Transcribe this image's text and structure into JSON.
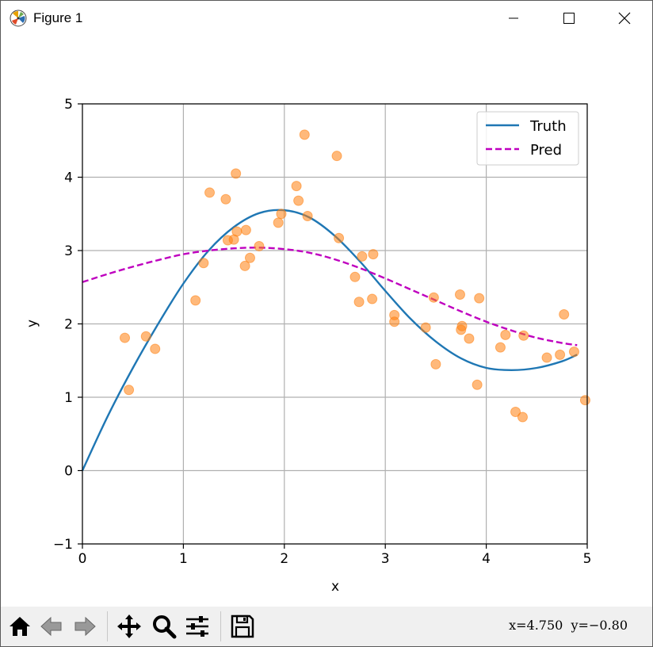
{
  "window": {
    "title": "Figure 1",
    "controls": {
      "minimize": "minimize",
      "maximize": "maximize",
      "close": "close"
    }
  },
  "chart_data": {
    "type": "scatter",
    "xlabel": "x",
    "ylabel": "y",
    "xlim": [
      0,
      5
    ],
    "ylim": [
      -1,
      5
    ],
    "xticks": [
      "0",
      "1",
      "2",
      "3",
      "4",
      "5"
    ],
    "yticks": [
      "−1",
      "0",
      "1",
      "2",
      "3",
      "4",
      "5"
    ],
    "grid": true,
    "legend_position": "top-right",
    "series": [
      {
        "name": "Truth",
        "kind": "line",
        "style": "solid",
        "color": "#1f77b4",
        "x": [
          0,
          0.25,
          0.5,
          0.75,
          1.0,
          1.25,
          1.5,
          1.75,
          2.0,
          2.25,
          2.5,
          2.75,
          3.0,
          3.25,
          3.5,
          3.75,
          4.0,
          4.25,
          4.5,
          4.75,
          4.9
        ],
        "y": [
          0,
          0.74,
          1.4,
          2.0,
          2.55,
          3.0,
          3.32,
          3.51,
          3.55,
          3.45,
          3.2,
          2.85,
          2.45,
          2.07,
          1.76,
          1.53,
          1.4,
          1.37,
          1.4,
          1.49,
          1.58
        ]
      },
      {
        "name": "Pred",
        "kind": "line",
        "style": "dashed",
        "color": "#bf00bf",
        "x": [
          0,
          0.25,
          0.5,
          0.75,
          1.0,
          1.25,
          1.5,
          1.75,
          2.0,
          2.25,
          2.5,
          2.75,
          3.0,
          3.25,
          3.5,
          3.75,
          4.0,
          4.25,
          4.5,
          4.75,
          4.9
        ],
        "y": [
          2.57,
          2.68,
          2.78,
          2.87,
          2.95,
          3.0,
          3.03,
          3.04,
          3.02,
          2.97,
          2.88,
          2.76,
          2.62,
          2.47,
          2.32,
          2.17,
          2.03,
          1.91,
          1.81,
          1.74,
          1.71
        ]
      },
      {
        "name": "",
        "kind": "scatter",
        "color": "#ff7f0e",
        "x": [
          0.42,
          0.46,
          0.63,
          0.72,
          1.12,
          1.2,
          1.26,
          1.42,
          1.44,
          1.5,
          1.52,
          1.53,
          1.61,
          1.62,
          1.66,
          1.75,
          1.94,
          1.97,
          2.12,
          2.14,
          2.2,
          2.23,
          2.52,
          2.54,
          2.7,
          2.74,
          2.77,
          2.87,
          2.88,
          3.09,
          3.09,
          3.4,
          3.48,
          3.5,
          3.74,
          3.75,
          3.76,
          3.83,
          3.91,
          3.93,
          4.14,
          4.19,
          4.29,
          4.36,
          4.37,
          4.6,
          4.73,
          4.77,
          4.87,
          4.98
        ],
        "y": [
          1.81,
          1.1,
          1.83,
          1.66,
          2.32,
          2.83,
          3.79,
          3.7,
          3.14,
          3.15,
          4.05,
          3.26,
          2.79,
          3.28,
          2.9,
          3.06,
          3.38,
          3.5,
          3.88,
          3.68,
          4.58,
          3.47,
          4.29,
          3.17,
          2.64,
          2.3,
          2.92,
          2.34,
          2.95,
          2.03,
          2.12,
          1.95,
          2.36,
          1.45,
          2.4,
          1.92,
          1.97,
          1.8,
          1.17,
          2.35,
          1.68,
          1.85,
          0.8,
          0.73,
          1.84,
          1.54,
          1.58,
          2.13,
          1.62,
          0.96
        ]
      }
    ]
  },
  "toolbar": {
    "buttons": [
      "home-icon",
      "back-icon",
      "forward-icon",
      "pan-icon",
      "zoom-icon",
      "configure-subplots-icon",
      "save-icon"
    ],
    "coordinates": "x=4.750  y=−0.80"
  }
}
